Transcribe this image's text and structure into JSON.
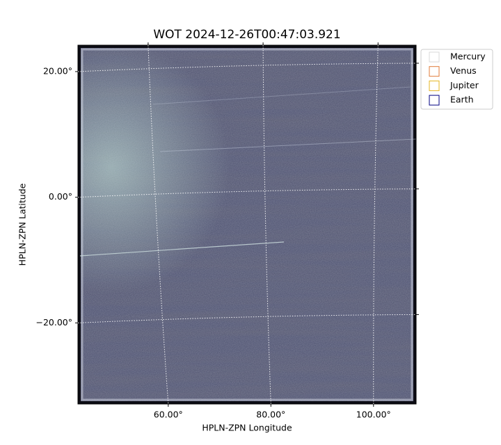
{
  "chart_data": {
    "type": "image",
    "title": "WOT 2024-12-26T00:47:03.921",
    "x_label": "HPLN-ZPN Longitude",
    "y_label": "HPLN-ZPN Latitude",
    "xlim": [
      42.4,
      108.3
    ],
    "ylim": [
      -32.9,
      24.2
    ],
    "xticks": [
      {
        "value": 60,
        "label": "60.00°"
      },
      {
        "value": 80,
        "label": "80.00°"
      },
      {
        "value": 100,
        "label": "100.00°"
      }
    ],
    "yticks": [
      {
        "value": 20,
        "label": "20.00°"
      },
      {
        "value": 0,
        "label": "0.00°"
      },
      {
        "value": -20,
        "label": "−20.00°"
      }
    ],
    "grid": true,
    "legend_position": "outside-upper-right",
    "legend": [
      {
        "name": "Mercury",
        "color": "#d9d9d9"
      },
      {
        "name": "Venus",
        "color": "#e07b39"
      },
      {
        "name": "Jupiter",
        "color": "#e6b422"
      },
      {
        "name": "Earth",
        "color": "#000080"
      }
    ]
  }
}
